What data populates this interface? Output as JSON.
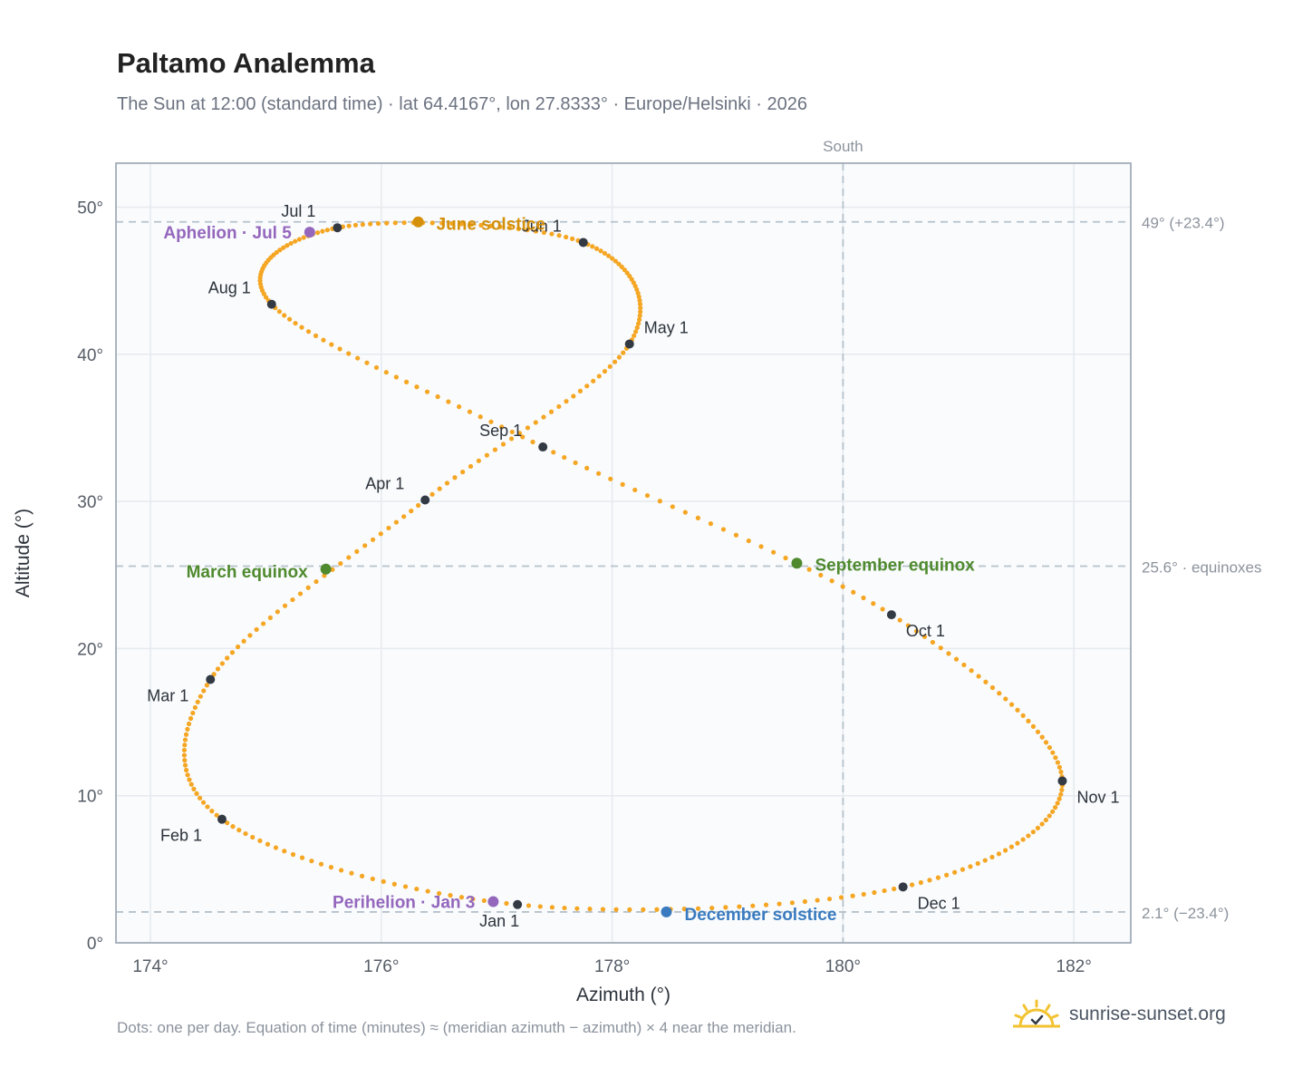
{
  "title": "Paltamo Analemma",
  "subtitle": "The Sun at 12:00 (standard time) · lat 64.4167°, lon 27.8333° · Europe/Helsinki · 2026",
  "footnote": "Dots: one per day. Equation of time (minutes) ≈ (meridian azimuth − azimuth) × 4 near the meridian.",
  "brand": {
    "text": "sunrise-sunset.org",
    "logo_icon": "sun-logo-icon"
  },
  "colors": {
    "curve": "#f5a623",
    "month_marker": "#333a44",
    "solstice_june": "#d4900a",
    "solstice_december": "#3a7bbf",
    "equinox": "#4f8a2e",
    "apsis": "#9467bd",
    "reference_line": "#b6c2cc",
    "plot_background": "#f9fbfd",
    "grid": "#e6eaee"
  },
  "chart_data": {
    "type": "scatter",
    "xlabel": "Azimuth (°)",
    "ylabel": "Altitude (°)",
    "xlim": [
      173.6,
      182.5
    ],
    "ylim": [
      0,
      53
    ],
    "x_ticks": [
      174,
      176,
      178,
      180,
      182
    ],
    "y_ticks": [
      0,
      10,
      20,
      30,
      40,
      50
    ],
    "x_tick_labels": [
      "174°",
      "176°",
      "178°",
      "180°",
      "182°"
    ],
    "y_tick_labels": [
      "0°",
      "10°",
      "20°",
      "30°",
      "40°",
      "50°"
    ],
    "grid": true,
    "meridian": {
      "azimuth": 180,
      "label": "South"
    },
    "reference_lines": [
      {
        "altitude": 49.0,
        "label": "49° (+23.4°)"
      },
      {
        "altitude": 25.6,
        "label": "25.6° · equinoxes"
      },
      {
        "altitude": 2.1,
        "label": "2.1° (−23.4°)"
      }
    ],
    "daily_points_note": "one dot per day; path interpolated through the monthly anchor points",
    "path_anchors": [
      {
        "day": 1,
        "az": 177.18,
        "alt": 2.6
      },
      {
        "day": 32,
        "az": 174.62,
        "alt": 8.4
      },
      {
        "day": 60,
        "az": 174.52,
        "alt": 17.9
      },
      {
        "day": 91,
        "az": 176.38,
        "alt": 30.1
      },
      {
        "day": 121,
        "az": 178.15,
        "alt": 40.7
      },
      {
        "day": 152,
        "az": 177.75,
        "alt": 47.6
      },
      {
        "day": 182,
        "az": 175.62,
        "alt": 48.6
      },
      {
        "day": 213,
        "az": 175.05,
        "alt": 43.4
      },
      {
        "day": 244,
        "az": 177.4,
        "alt": 33.7
      },
      {
        "day": 274,
        "az": 180.42,
        "alt": 22.3
      },
      {
        "day": 305,
        "az": 181.9,
        "alt": 11.0
      },
      {
        "day": 335,
        "az": 180.52,
        "alt": 3.8
      },
      {
        "day": 366,
        "az": 177.18,
        "alt": 2.6
      }
    ],
    "month_markers": [
      {
        "label": "Jan 1",
        "az": 177.18,
        "alt": 2.6
      },
      {
        "label": "Feb 1",
        "az": 174.62,
        "alt": 8.4
      },
      {
        "label": "Mar 1",
        "az": 174.52,
        "alt": 17.9
      },
      {
        "label": "Apr 1",
        "az": 176.38,
        "alt": 30.1
      },
      {
        "label": "May 1",
        "az": 178.15,
        "alt": 40.7
      },
      {
        "label": "Jun 1",
        "az": 177.75,
        "alt": 47.6
      },
      {
        "label": "Jul 1",
        "az": 175.62,
        "alt": 48.6
      },
      {
        "label": "Aug 1",
        "az": 175.05,
        "alt": 43.4
      },
      {
        "label": "Sep 1",
        "az": 177.4,
        "alt": 33.7
      },
      {
        "label": "Oct 1",
        "az": 180.42,
        "alt": 22.3
      },
      {
        "label": "Nov 1",
        "az": 181.9,
        "alt": 11.0
      },
      {
        "label": "Dec 1",
        "az": 180.52,
        "alt": 3.8
      }
    ],
    "events": [
      {
        "label": "June solstice",
        "az": 176.32,
        "alt": 49.0,
        "kind": "solstice_june"
      },
      {
        "label": "December solstice",
        "az": 178.47,
        "alt": 2.1,
        "kind": "solstice_december"
      },
      {
        "label": "March equinox",
        "az": 175.52,
        "alt": 25.4,
        "kind": "equinox"
      },
      {
        "label": "September equinox",
        "az": 179.6,
        "alt": 25.8,
        "kind": "equinox"
      },
      {
        "label": "Aphelion · Jul 5",
        "az": 175.38,
        "alt": 48.3,
        "kind": "apsis"
      },
      {
        "label": "Perihelion · Jan 3",
        "az": 176.97,
        "alt": 2.8,
        "kind": "apsis"
      }
    ]
  }
}
